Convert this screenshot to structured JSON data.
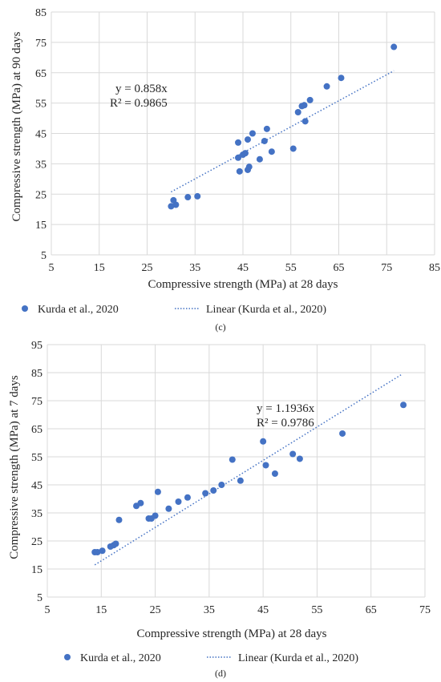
{
  "chart_data": [
    {
      "type": "scatter",
      "caption": "(c)",
      "xlabel": "Compressive strength (MPa) at 28 days",
      "ylabel": "Compressive strength (MPa) at 90 days",
      "xlim": [
        5,
        85
      ],
      "ylim": [
        5,
        85
      ],
      "xticks": [
        "5",
        "15",
        "25",
        "35",
        "45",
        "55",
        "65",
        "75",
        "85"
      ],
      "yticks": [
        "5",
        "15",
        "25",
        "35",
        "45",
        "55",
        "65",
        "75",
        "85"
      ],
      "grid": "both",
      "legend_position": "bottom",
      "equation": "y = 0.858x",
      "r2": "R² = 0.9865",
      "trendline": {
        "name": "Linear (Kurda et al., 2020)",
        "slope": 0.858,
        "x": [
          30,
          76.5
        ]
      },
      "series": [
        {
          "name": "Kurda et al., 2020",
          "color": "#4472c4",
          "points": [
            [
              30,
              21
            ],
            [
              30.5,
              23
            ],
            [
              31,
              21.5
            ],
            [
              33.5,
              24
            ],
            [
              35.5,
              24.3
            ],
            [
              44,
              42
            ],
            [
              44,
              37
            ],
            [
              44.3,
              32.5
            ],
            [
              45,
              38
            ],
            [
              45.5,
              38.5
            ],
            [
              46,
              43
            ],
            [
              46,
              33
            ],
            [
              46.3,
              34
            ],
            [
              47,
              45
            ],
            [
              48.5,
              36.5
            ],
            [
              49.5,
              42.5
            ],
            [
              50,
              46.5
            ],
            [
              51,
              39
            ],
            [
              55.5,
              40
            ],
            [
              56.5,
              52
            ],
            [
              57.3,
              54
            ],
            [
              57.8,
              54.3
            ],
            [
              58,
              49
            ],
            [
              59,
              56
            ],
            [
              62.5,
              60.5
            ],
            [
              65.5,
              63.3
            ],
            [
              76.5,
              73.5
            ]
          ]
        }
      ]
    },
    {
      "type": "scatter",
      "caption": "(d)",
      "xlabel": "Compressive strength (MPa) at 28 days",
      "ylabel": "Compressive strength (MPa) at 7 days",
      "xlim": [
        5,
        75
      ],
      "ylim": [
        5,
        95
      ],
      "xticks": [
        "5",
        "15",
        "25",
        "35",
        "45",
        "55",
        "65",
        "75"
      ],
      "yticks": [
        "5",
        "15",
        "25",
        "35",
        "45",
        "55",
        "65",
        "75",
        "85",
        "95"
      ],
      "grid": "both",
      "legend_position": "bottom",
      "equation": "y = 1.1936x",
      "r2": "R² = 0.9786",
      "trendline": {
        "name": "Linear (Kurda et al., 2020)",
        "slope": 1.1936,
        "x": [
          13.8,
          70.8
        ]
      },
      "series": [
        {
          "name": "Kurda et al., 2020",
          "color": "#4472c4",
          "points": [
            [
              13.8,
              21
            ],
            [
              14.3,
              21
            ],
            [
              15.2,
              21.5
            ],
            [
              16.7,
              23
            ],
            [
              17.3,
              23.5
            ],
            [
              17.7,
              24
            ],
            [
              18.3,
              32.5
            ],
            [
              21.5,
              37.5
            ],
            [
              22.3,
              38.5
            ],
            [
              23.8,
              33
            ],
            [
              24.3,
              33
            ],
            [
              25,
              34
            ],
            [
              25.5,
              42.5
            ],
            [
              27.5,
              36.5
            ],
            [
              29.3,
              39
            ],
            [
              31,
              40.5
            ],
            [
              34.3,
              42
            ],
            [
              35.8,
              43
            ],
            [
              37.3,
              45
            ],
            [
              39.3,
              54
            ],
            [
              40.8,
              46.5
            ],
            [
              45,
              60.5
            ],
            [
              45.5,
              52
            ],
            [
              47.2,
              49
            ],
            [
              50.5,
              56
            ],
            [
              51.8,
              54.3
            ],
            [
              59.7,
              63.3
            ],
            [
              71,
              73.5
            ]
          ]
        }
      ]
    }
  ]
}
